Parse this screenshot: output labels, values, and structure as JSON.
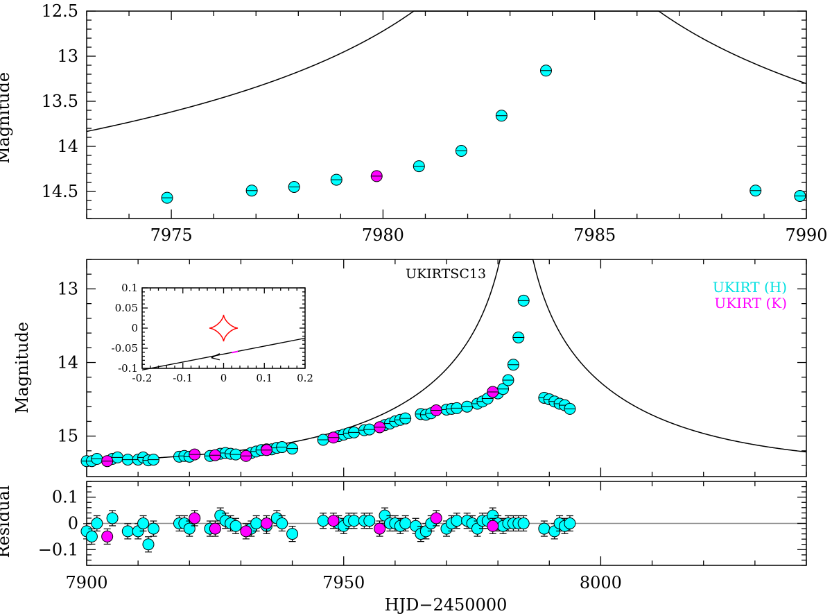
{
  "chart_data": [
    {
      "id": "top",
      "type": "scatter",
      "ylabel": "Magnitude",
      "xlim": [
        7973,
        7990
      ],
      "ylim": [
        14.8,
        12.5
      ],
      "xticks_major": [
        7975,
        7980,
        7985,
        7990
      ],
      "xtick_labels": [
        "7975",
        "7980",
        "7985",
        "7990"
      ],
      "yticks_major": [
        12.5,
        13,
        13.5,
        14,
        14.5
      ],
      "ytick_labels": [
        "12.5",
        "13",
        "13.5",
        "14",
        "14.5"
      ],
      "model": {
        "t0": 7983.62,
        "u0": 0.0222,
        "tE": 45.0,
        "mbase": 15.42
      },
      "series": [
        {
          "name": "UKIRT (H)",
          "color": "#00ffff",
          "points": [
            [
              7974.9,
              14.57
            ],
            [
              7976.9,
              14.49
            ],
            [
              7977.9,
              14.45
            ],
            [
              7978.9,
              14.37
            ],
            [
              7980.85,
              14.22
            ],
            [
              7981.85,
              14.05
            ],
            [
              7982.8,
              13.66
            ],
            [
              7983.85,
              13.16
            ],
            [
              7988.8,
              14.49
            ],
            [
              7989.85,
              14.55
            ]
          ]
        },
        {
          "name": "UKIRT (K)",
          "color": "#ff00ff",
          "points": [
            [
              7979.85,
              14.33
            ]
          ]
        }
      ]
    },
    {
      "id": "middle",
      "type": "scatter",
      "title": "UKIRTSC13",
      "ylabel": "Magnitude",
      "xlim": [
        7900,
        8040
      ],
      "ylim": [
        15.55,
        12.6
      ],
      "yticks_major": [
        13,
        14,
        15
      ],
      "ytick_labels": [
        "13",
        "14",
        "15"
      ],
      "legend": [
        "UKIRT (H)",
        "UKIRT (K)"
      ],
      "series": [
        {
          "name": "UKIRT (H)",
          "color": "#00ffff",
          "points": [
            [
              7900,
              15.34
            ],
            [
              7901,
              15.34
            ],
            [
              7902,
              15.31
            ],
            [
              7905,
              15.31
            ],
            [
              7906,
              15.29
            ],
            [
              7908,
              15.32
            ],
            [
              7910,
              15.32
            ],
            [
              7911,
              15.29
            ],
            [
              7912,
              15.33
            ],
            [
              7913,
              15.32
            ],
            [
              7918,
              15.28
            ],
            [
              7919,
              15.27
            ],
            [
              7920,
              15.28
            ],
            [
              7924,
              15.27
            ],
            [
              7926,
              15.24
            ],
            [
              7927,
              15.23
            ],
            [
              7928,
              15.24
            ],
            [
              7929,
              15.25
            ],
            [
              7932,
              15.23
            ],
            [
              7933,
              15.21
            ],
            [
              7934,
              15.19
            ],
            [
              7935,
              15.18
            ],
            [
              7936,
              15.18
            ],
            [
              7937,
              15.16
            ],
            [
              7938,
              15.15
            ],
            [
              7940,
              15.17
            ],
            [
              7946,
              15.05
            ],
            [
              7949,
              15.0
            ],
            [
              7950,
              14.98
            ],
            [
              7951,
              14.96
            ],
            [
              7952,
              14.95
            ],
            [
              7954,
              14.92
            ],
            [
              7955,
              14.91
            ],
            [
              7957,
              14.88
            ],
            [
              7958,
              14.85
            ],
            [
              7959,
              14.83
            ],
            [
              7960,
              14.8
            ],
            [
              7961,
              14.78
            ],
            [
              7962,
              14.76
            ],
            [
              7965,
              14.7
            ],
            [
              7966,
              14.71
            ],
            [
              7967,
              14.69
            ],
            [
              7970,
              14.64
            ],
            [
              7971,
              14.63
            ],
            [
              7972,
              14.62
            ],
            [
              7974,
              14.6
            ],
            [
              7976,
              14.56
            ],
            [
              7977,
              14.53
            ],
            [
              7978,
              14.49
            ],
            [
              7980,
              14.42
            ],
            [
              7981,
              14.36
            ],
            [
              7982,
              14.24
            ],
            [
              7983,
              14.03
            ],
            [
              7984,
              13.66
            ],
            [
              7985,
              13.16
            ],
            [
              7989,
              14.48
            ],
            [
              7990,
              14.5
            ],
            [
              7991,
              14.53
            ],
            [
              7992,
              14.56
            ],
            [
              7993,
              14.58
            ],
            [
              7994,
              14.63
            ]
          ]
        },
        {
          "name": "UKIRT (K)",
          "color": "#ff00ff",
          "points": [
            [
              7904,
              15.34
            ],
            [
              7921,
              15.25
            ],
            [
              7925,
              15.26
            ],
            [
              7931,
              15.27
            ],
            [
              7935,
              15.19
            ],
            [
              7948,
              15.02
            ],
            [
              7957,
              14.88
            ],
            [
              7968,
              14.65
            ],
            [
              7979,
              14.4
            ]
          ]
        }
      ],
      "inset": {
        "xlim": [
          -0.2,
          0.2
        ],
        "ylim": [
          -0.1,
          0.1
        ],
        "xticks": [
          -0.2,
          -0.1,
          0,
          0.1,
          0.2
        ],
        "xtick_labels": [
          "-0.2",
          "-0.1",
          "0",
          "0.1",
          "0.2"
        ],
        "yticks": [
          -0.1,
          -0.05,
          0,
          0.05,
          0.1
        ],
        "ytick_labels": [
          "-0.1",
          "-0.05",
          "0",
          "0.05",
          "0.1"
        ],
        "trajectory": [
          [
            -0.22,
            -0.108
          ],
          [
            0.2,
            -0.025
          ]
        ],
        "caustic": {
          "cx": 0.0,
          "cy": 0.0,
          "rx": 0.035,
          "ry": 0.033,
          "color": "#ff0000"
        }
      }
    },
    {
      "id": "bottom",
      "type": "scatter",
      "ylabel": "Residual",
      "xlabel": "HJD−2450000",
      "xlim": [
        7900,
        8040
      ],
      "ylim": [
        -0.16,
        0.16
      ],
      "xticks_major": [
        7900,
        7950,
        8000
      ],
      "xtick_labels": [
        "7900",
        "7950",
        "8000"
      ],
      "yticks_major": [
        0.1,
        0,
        -0.1
      ],
      "ytick_labels": [
        "0.1",
        "0",
        "−0.1"
      ],
      "series": [
        {
          "name": "UKIRT (H)",
          "color": "#00ffff",
          "points": [
            [
              7900,
              -0.03
            ],
            [
              7901,
              -0.05
            ],
            [
              7902,
              0.0
            ],
            [
              7905,
              0.02
            ],
            [
              7908,
              -0.03
            ],
            [
              7910,
              -0.03
            ],
            [
              7911,
              0.0
            ],
            [
              7912,
              -0.08
            ],
            [
              7913,
              -0.02
            ],
            [
              7918,
              0.0
            ],
            [
              7919,
              0.0
            ],
            [
              7920,
              -0.02
            ],
            [
              7924,
              -0.02
            ],
            [
              7926,
              0.03
            ],
            [
              7927,
              0.01
            ],
            [
              7928,
              0.0
            ],
            [
              7929,
              -0.01
            ],
            [
              7932,
              -0.02
            ],
            [
              7933,
              0.0
            ],
            [
              7935,
              -0.01
            ],
            [
              7937,
              0.02
            ],
            [
              7938,
              0.0
            ],
            [
              7940,
              -0.04
            ],
            [
              7946,
              0.01
            ],
            [
              7949,
              0.0
            ],
            [
              7950,
              -0.01
            ],
            [
              7951,
              0.01
            ],
            [
              7952,
              0.01
            ],
            [
              7954,
              0.01
            ],
            [
              7955,
              0.01
            ],
            [
              7958,
              0.03
            ],
            [
              7959,
              0.0
            ],
            [
              7960,
              0.0
            ],
            [
              7961,
              -0.01
            ],
            [
              7962,
              0.0
            ],
            [
              7964,
              -0.01
            ],
            [
              7965,
              -0.04
            ],
            [
              7966,
              -0.03
            ],
            [
              7967,
              0.0
            ],
            [
              7970,
              -0.02
            ],
            [
              7971,
              0.0
            ],
            [
              7972,
              0.01
            ],
            [
              7974,
              0.01
            ],
            [
              7975,
              0.0
            ],
            [
              7976,
              -0.02
            ],
            [
              7977,
              0.01
            ],
            [
              7978,
              0.01
            ],
            [
              7979,
              0.03
            ],
            [
              7980,
              0.0
            ],
            [
              7981,
              -0.01
            ],
            [
              7982,
              0.0
            ],
            [
              7983,
              0.0
            ],
            [
              7984,
              0.0
            ],
            [
              7985,
              0.0
            ],
            [
              7989,
              -0.02
            ],
            [
              7991,
              -0.03
            ],
            [
              7992,
              0.0
            ],
            [
              7993,
              -0.01
            ],
            [
              7994,
              0.0
            ]
          ]
        },
        {
          "name": "UKIRT (K)",
          "color": "#ff00ff",
          "points": [
            [
              7904,
              -0.05
            ],
            [
              7921,
              0.02
            ],
            [
              7925,
              -0.02
            ],
            [
              7931,
              -0.03
            ],
            [
              7935,
              0.0
            ],
            [
              7948,
              0.01
            ],
            [
              7957,
              -0.02
            ],
            [
              7968,
              0.02
            ],
            [
              7979,
              -0.01
            ]
          ]
        }
      ]
    }
  ]
}
